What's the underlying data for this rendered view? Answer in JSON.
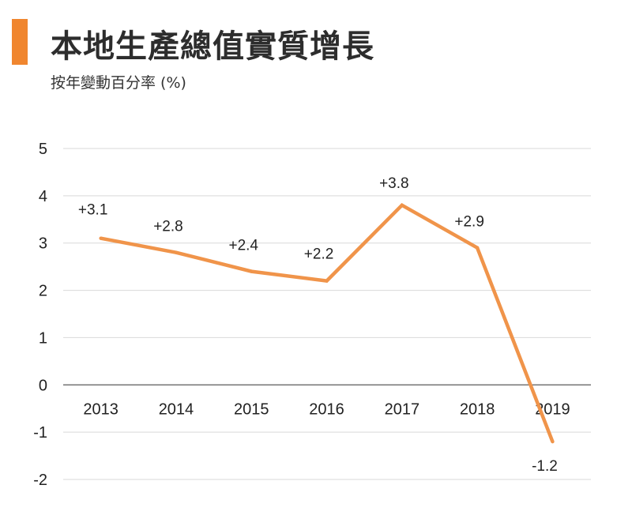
{
  "title": "本地生產總值實質增長",
  "subtitle": "按年變動百分率 (%)",
  "colors": {
    "accent": "#f0862f",
    "line": "#f0944a",
    "grid": "#d9d9d9",
    "axis": "#595959"
  },
  "chart_data": {
    "type": "line",
    "title": "本地生產總值實質增長",
    "subtitle": "按年變動百分率 (%)",
    "xlabel": "",
    "ylabel": "",
    "categories": [
      "2013",
      "2014",
      "2015",
      "2016",
      "2017",
      "2018",
      "2019"
    ],
    "values": [
      3.1,
      2.8,
      2.4,
      2.2,
      3.8,
      2.9,
      -1.2
    ],
    "data_labels": [
      "+3.1",
      "+2.8",
      "+2.4",
      "+2.2",
      "+3.8",
      "+2.9",
      "-1.2"
    ],
    "ylim": [
      -2,
      5
    ],
    "yticks": [
      "-2",
      "-1",
      "0",
      "1",
      "2",
      "3",
      "4",
      "5"
    ],
    "grid": true,
    "legend": "none"
  }
}
